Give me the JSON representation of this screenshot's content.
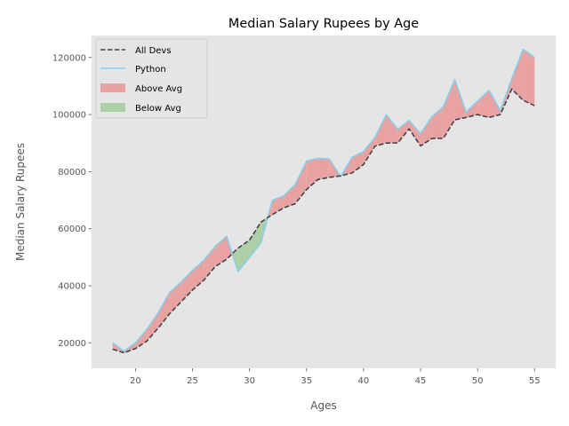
{
  "chart_data": {
    "type": "area",
    "title": "Median Salary Rupees by Age",
    "xlabel": "Ages",
    "ylabel": "Median Salary Rupees",
    "x": [
      18,
      19,
      20,
      21,
      22,
      23,
      24,
      25,
      26,
      27,
      28,
      29,
      30,
      31,
      32,
      33,
      34,
      35,
      36,
      37,
      38,
      39,
      40,
      41,
      42,
      43,
      44,
      45,
      46,
      47,
      48,
      49,
      50,
      51,
      52,
      53,
      54,
      55
    ],
    "xlim": [
      16.15,
      56.85
    ],
    "ylim": [
      11075,
      127700
    ],
    "x_ticks": [
      20,
      25,
      30,
      35,
      40,
      45,
      50,
      55
    ],
    "y_ticks": [
      20000,
      40000,
      60000,
      80000,
      100000,
      120000
    ],
    "grid": false,
    "legend_position": "upper-left",
    "series": [
      {
        "name": "All Devs",
        "style": "dashed",
        "color": "#444444",
        "values": [
          17784,
          16500,
          18012,
          20628,
          25206,
          30252,
          34368,
          38496,
          42000,
          46752,
          49320,
          53200,
          56000,
          62316,
          64928,
          67317,
          68748,
          73752,
          77232,
          78000,
          78508,
          79536,
          82488,
          88935,
          90000,
          90056,
          95000,
          89000,
          91633,
          91660,
          98150,
          98964,
          100000,
          98988,
          100000,
          108923,
          105000,
          103117
        ]
      },
      {
        "name": "Python",
        "style": "solid",
        "color": "#87ceeb",
        "values": [
          20046,
          17100,
          20000,
          24744,
          30500,
          37732,
          41247,
          45372,
          48876,
          53850,
          57287,
          45000,
          50000,
          55000,
          70000,
          71496,
          75370,
          83640,
          84666,
          84392,
          78254,
          85000,
          87038,
          91991,
          100000,
          94796,
          97962,
          93302,
          99240,
          102736,
          112285,
          100771,
          104708,
          108423,
          101407,
          112542,
          122870,
          120000
        ]
      }
    ],
    "fills": [
      {
        "name": "Above Avg",
        "color": "#e8a2a2"
      },
      {
        "name": "Below Avg",
        "color": "#acd0a6"
      }
    ]
  }
}
